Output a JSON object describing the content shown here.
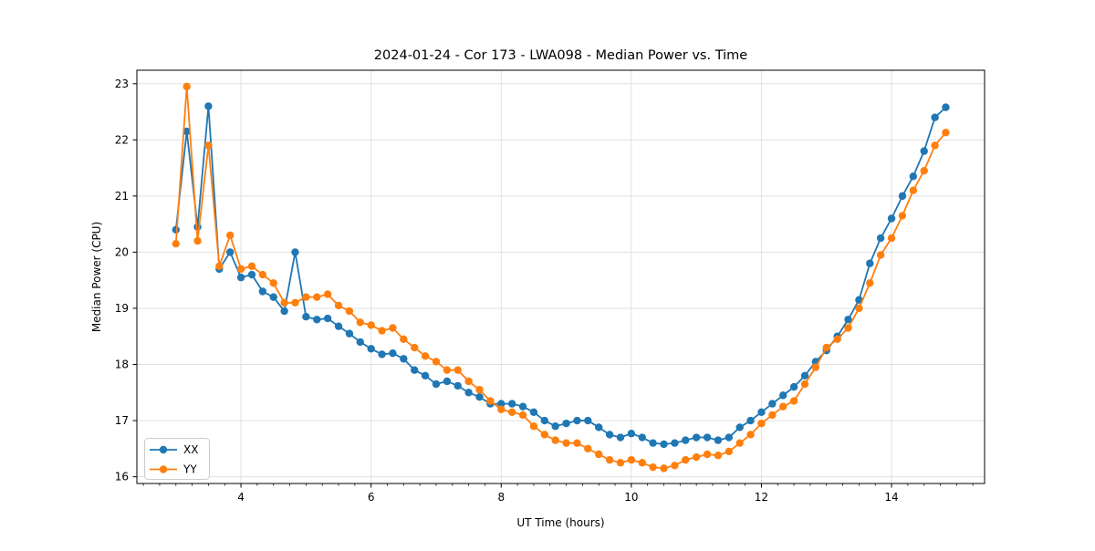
{
  "chart_data": {
    "type": "line",
    "title": "2024-01-24 - Cor 173 - LWA098 - Median Power vs. Time",
    "xlabel": "UT Time (hours)",
    "ylabel": "Median Power (CPU)",
    "xlim": [
      2.4,
      15.43
    ],
    "ylim": [
      15.88,
      23.24
    ],
    "x_major_ticks": [
      4,
      6,
      8,
      10,
      12,
      14
    ],
    "x_minor_tick_step": 0.25,
    "y_major_ticks": [
      16,
      17,
      18,
      19,
      20,
      21,
      22,
      23
    ],
    "grid": true,
    "legend_position": "lower left",
    "x": [
      3,
      3.167,
      3.333,
      3.5,
      3.667,
      3.833,
      4,
      4.167,
      4.333,
      4.5,
      4.667,
      4.833,
      5,
      5.167,
      5.333,
      5.5,
      5.667,
      5.833,
      6,
      6.167,
      6.333,
      6.5,
      6.667,
      6.833,
      7,
      7.167,
      7.333,
      7.5,
      7.667,
      7.833,
      8,
      8.167,
      8.333,
      8.5,
      8.667,
      8.833,
      9,
      9.167,
      9.333,
      9.5,
      9.667,
      9.833,
      10,
      10.167,
      10.333,
      10.5,
      10.667,
      10.833,
      11,
      11.167,
      11.333,
      11.5,
      11.667,
      11.833,
      12,
      12.167,
      12.333,
      12.5,
      12.667,
      12.833,
      13,
      13.167,
      13.333,
      13.5,
      13.667,
      13.833,
      14,
      14.167,
      14.333,
      14.5,
      14.667,
      14.833
    ],
    "series": [
      {
        "name": "XX",
        "color": "#1f77b4",
        "marker": "circle",
        "values": [
          20.4,
          22.15,
          20.45,
          22.6,
          19.7,
          20.0,
          19.55,
          19.6,
          19.3,
          19.2,
          18.95,
          20.0,
          18.85,
          18.8,
          18.82,
          18.68,
          18.55,
          18.4,
          18.28,
          18.18,
          18.2,
          18.1,
          17.9,
          17.8,
          17.65,
          17.7,
          17.62,
          17.5,
          17.42,
          17.3,
          17.3,
          17.3,
          17.25,
          17.15,
          17.0,
          16.9,
          16.95,
          17.0,
          17.0,
          16.88,
          16.75,
          16.7,
          16.77,
          16.7,
          16.6,
          16.58,
          16.6,
          16.65,
          16.7,
          16.7,
          16.65,
          16.7,
          16.88,
          17.0,
          17.15,
          17.3,
          17.45,
          17.6,
          17.8,
          18.05,
          18.25,
          18.5,
          18.8,
          19.15,
          19.8,
          20.25,
          20.6,
          21.0,
          21.35,
          21.8,
          22.4,
          22.58
        ]
      },
      {
        "name": "YY",
        "color": "#ff7f0e",
        "marker": "circle",
        "values": [
          20.15,
          22.95,
          20.2,
          21.9,
          19.75,
          20.3,
          19.7,
          19.75,
          19.6,
          19.45,
          19.1,
          19.1,
          19.2,
          19.2,
          19.25,
          19.05,
          18.95,
          18.75,
          18.7,
          18.6,
          18.65,
          18.45,
          18.3,
          18.15,
          18.05,
          17.9,
          17.9,
          17.7,
          17.55,
          17.35,
          17.2,
          17.15,
          17.1,
          16.9,
          16.75,
          16.65,
          16.6,
          16.6,
          16.5,
          16.4,
          16.3,
          16.25,
          16.3,
          16.25,
          16.17,
          16.15,
          16.2,
          16.3,
          16.35,
          16.4,
          16.38,
          16.45,
          16.6,
          16.75,
          16.95,
          17.1,
          17.25,
          17.35,
          17.65,
          17.95,
          18.3,
          18.45,
          18.65,
          19.0,
          19.45,
          19.95,
          20.25,
          20.65,
          21.1,
          21.45,
          21.9,
          22.13
        ]
      }
    ],
    "style": {
      "grid_color": "#e0e0e0",
      "spine_color": "#000000",
      "background": "#ffffff",
      "legend_border": "#cccccc"
    }
  }
}
